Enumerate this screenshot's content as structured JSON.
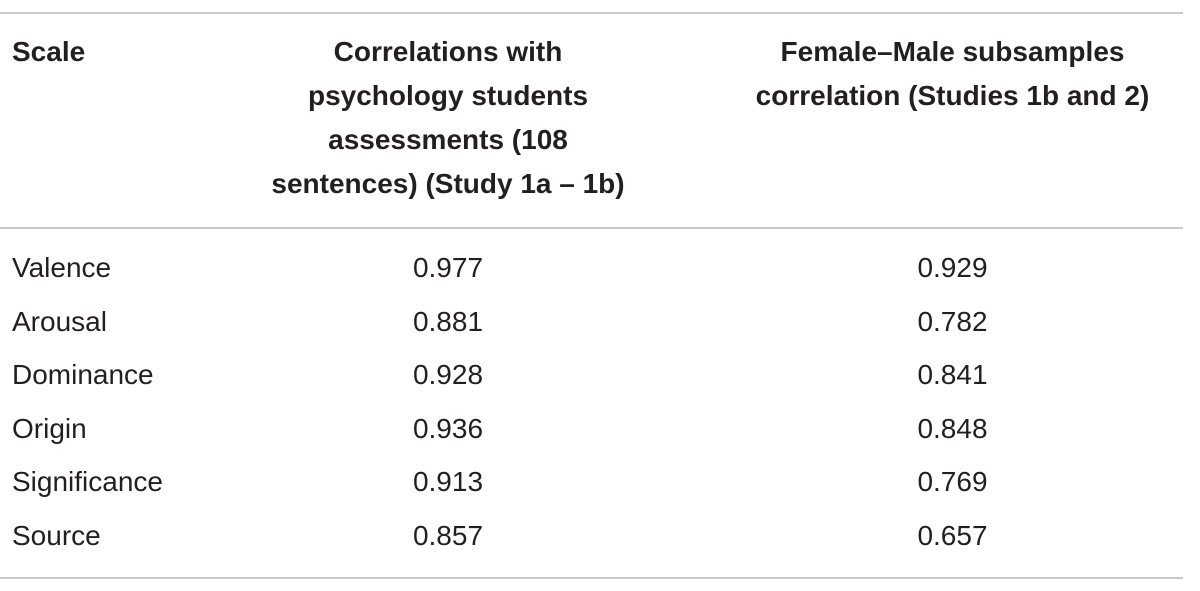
{
  "table": {
    "headers": {
      "scale": "Scale",
      "col2_lines": [
        "Correlations with",
        "psychology students",
        "assessments (108",
        "sentences) (Study 1a – 1b)"
      ],
      "col3_lines": [
        "Female–Male subsamples",
        "correlation (Studies 1b and 2)"
      ]
    },
    "rows": [
      {
        "scale": "Valence",
        "psych_corr": "0.977",
        "fm_corr": "0.929"
      },
      {
        "scale": "Arousal",
        "psych_corr": "0.881",
        "fm_corr": "0.782"
      },
      {
        "scale": "Dominance",
        "psych_corr": "0.928",
        "fm_corr": "0.841"
      },
      {
        "scale": "Origin",
        "psych_corr": "0.936",
        "fm_corr": "0.848"
      },
      {
        "scale": "Significance",
        "psych_corr": "0.913",
        "fm_corr": "0.769"
      },
      {
        "scale": "Source",
        "psych_corr": "0.857",
        "fm_corr": "0.657"
      }
    ]
  }
}
